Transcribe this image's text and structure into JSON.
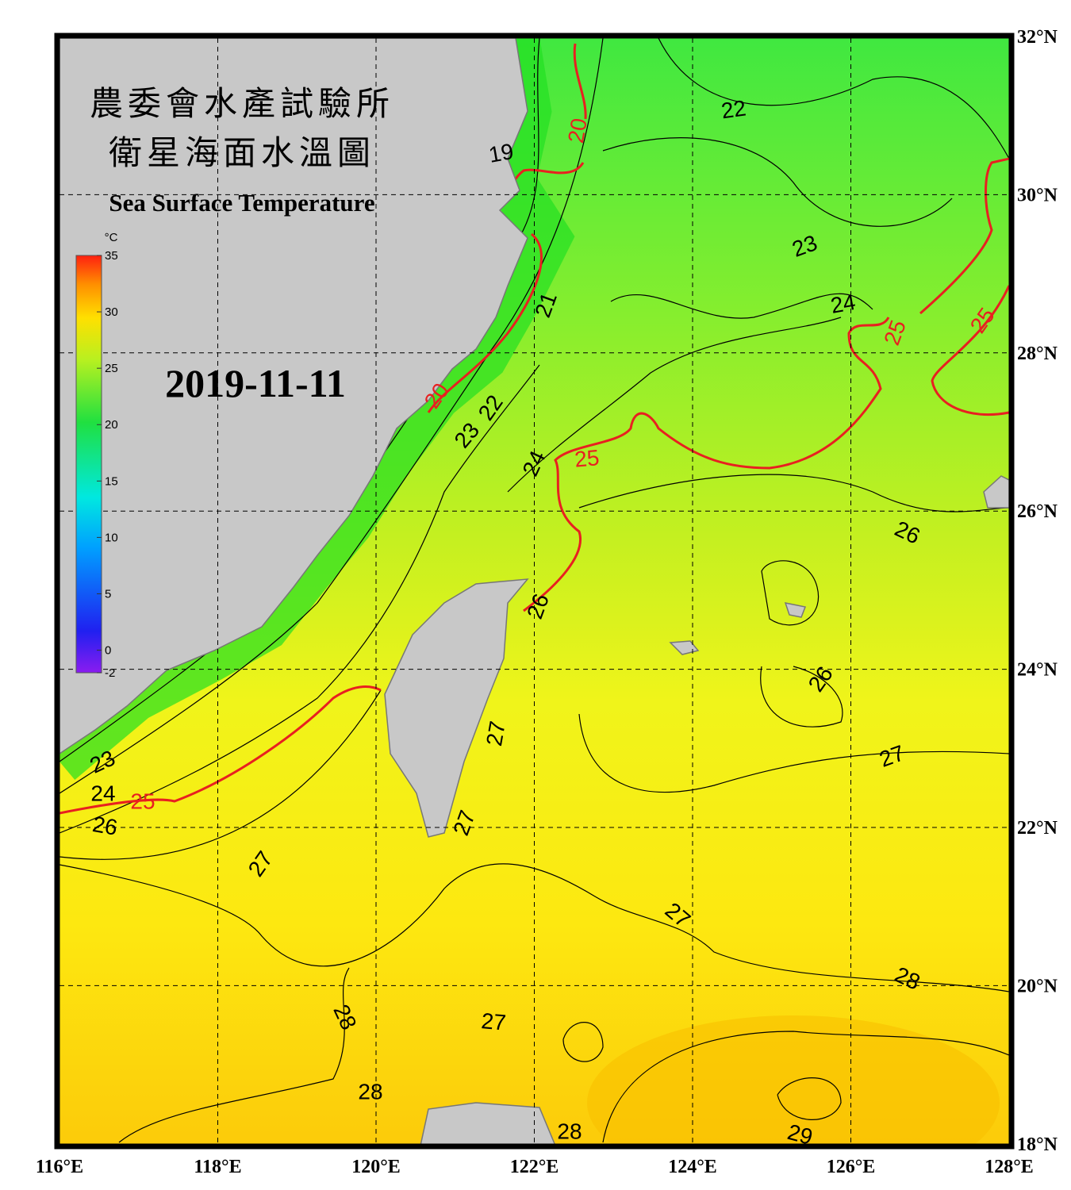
{
  "header": {
    "title_line1": "農委會水產試驗所",
    "title_line2": "衛星海面水溫圖",
    "subtitle": "Sea Surface Temperature",
    "date": "2019-11-11"
  },
  "colorbar": {
    "unit": "°C",
    "ticks": [
      35,
      30,
      25,
      20,
      15,
      10,
      5,
      0,
      -2
    ]
  },
  "lon_ticks": [
    {
      "value": 116,
      "label": "116°E"
    },
    {
      "value": 118,
      "label": "118°E"
    },
    {
      "value": 120,
      "label": "120°E"
    },
    {
      "value": 122,
      "label": "122°E"
    },
    {
      "value": 124,
      "label": "124°E"
    },
    {
      "value": 126,
      "label": "126°E"
    },
    {
      "value": 128,
      "label": "128°E"
    }
  ],
  "lat_ticks": [
    {
      "value": 32,
      "label": "32°N"
    },
    {
      "value": 30,
      "label": "30°N"
    },
    {
      "value": 28,
      "label": "28°N"
    },
    {
      "value": 26,
      "label": "26°N"
    },
    {
      "value": 24,
      "label": "24°N"
    },
    {
      "value": 22,
      "label": "22°N"
    },
    {
      "value": 20,
      "label": "20°N"
    },
    {
      "value": 18,
      "label": "18°N"
    }
  ],
  "contour_labels": [
    "22",
    "20",
    "19",
    "23",
    "24",
    "25",
    "25",
    "21",
    "20",
    "22",
    "23",
    "24",
    "25",
    "26",
    "26",
    "26",
    "27",
    "23",
    "24",
    "25",
    "26",
    "27",
    "27",
    "27",
    "28",
    "27",
    "28",
    "28",
    "27",
    "28",
    "29"
  ]
}
